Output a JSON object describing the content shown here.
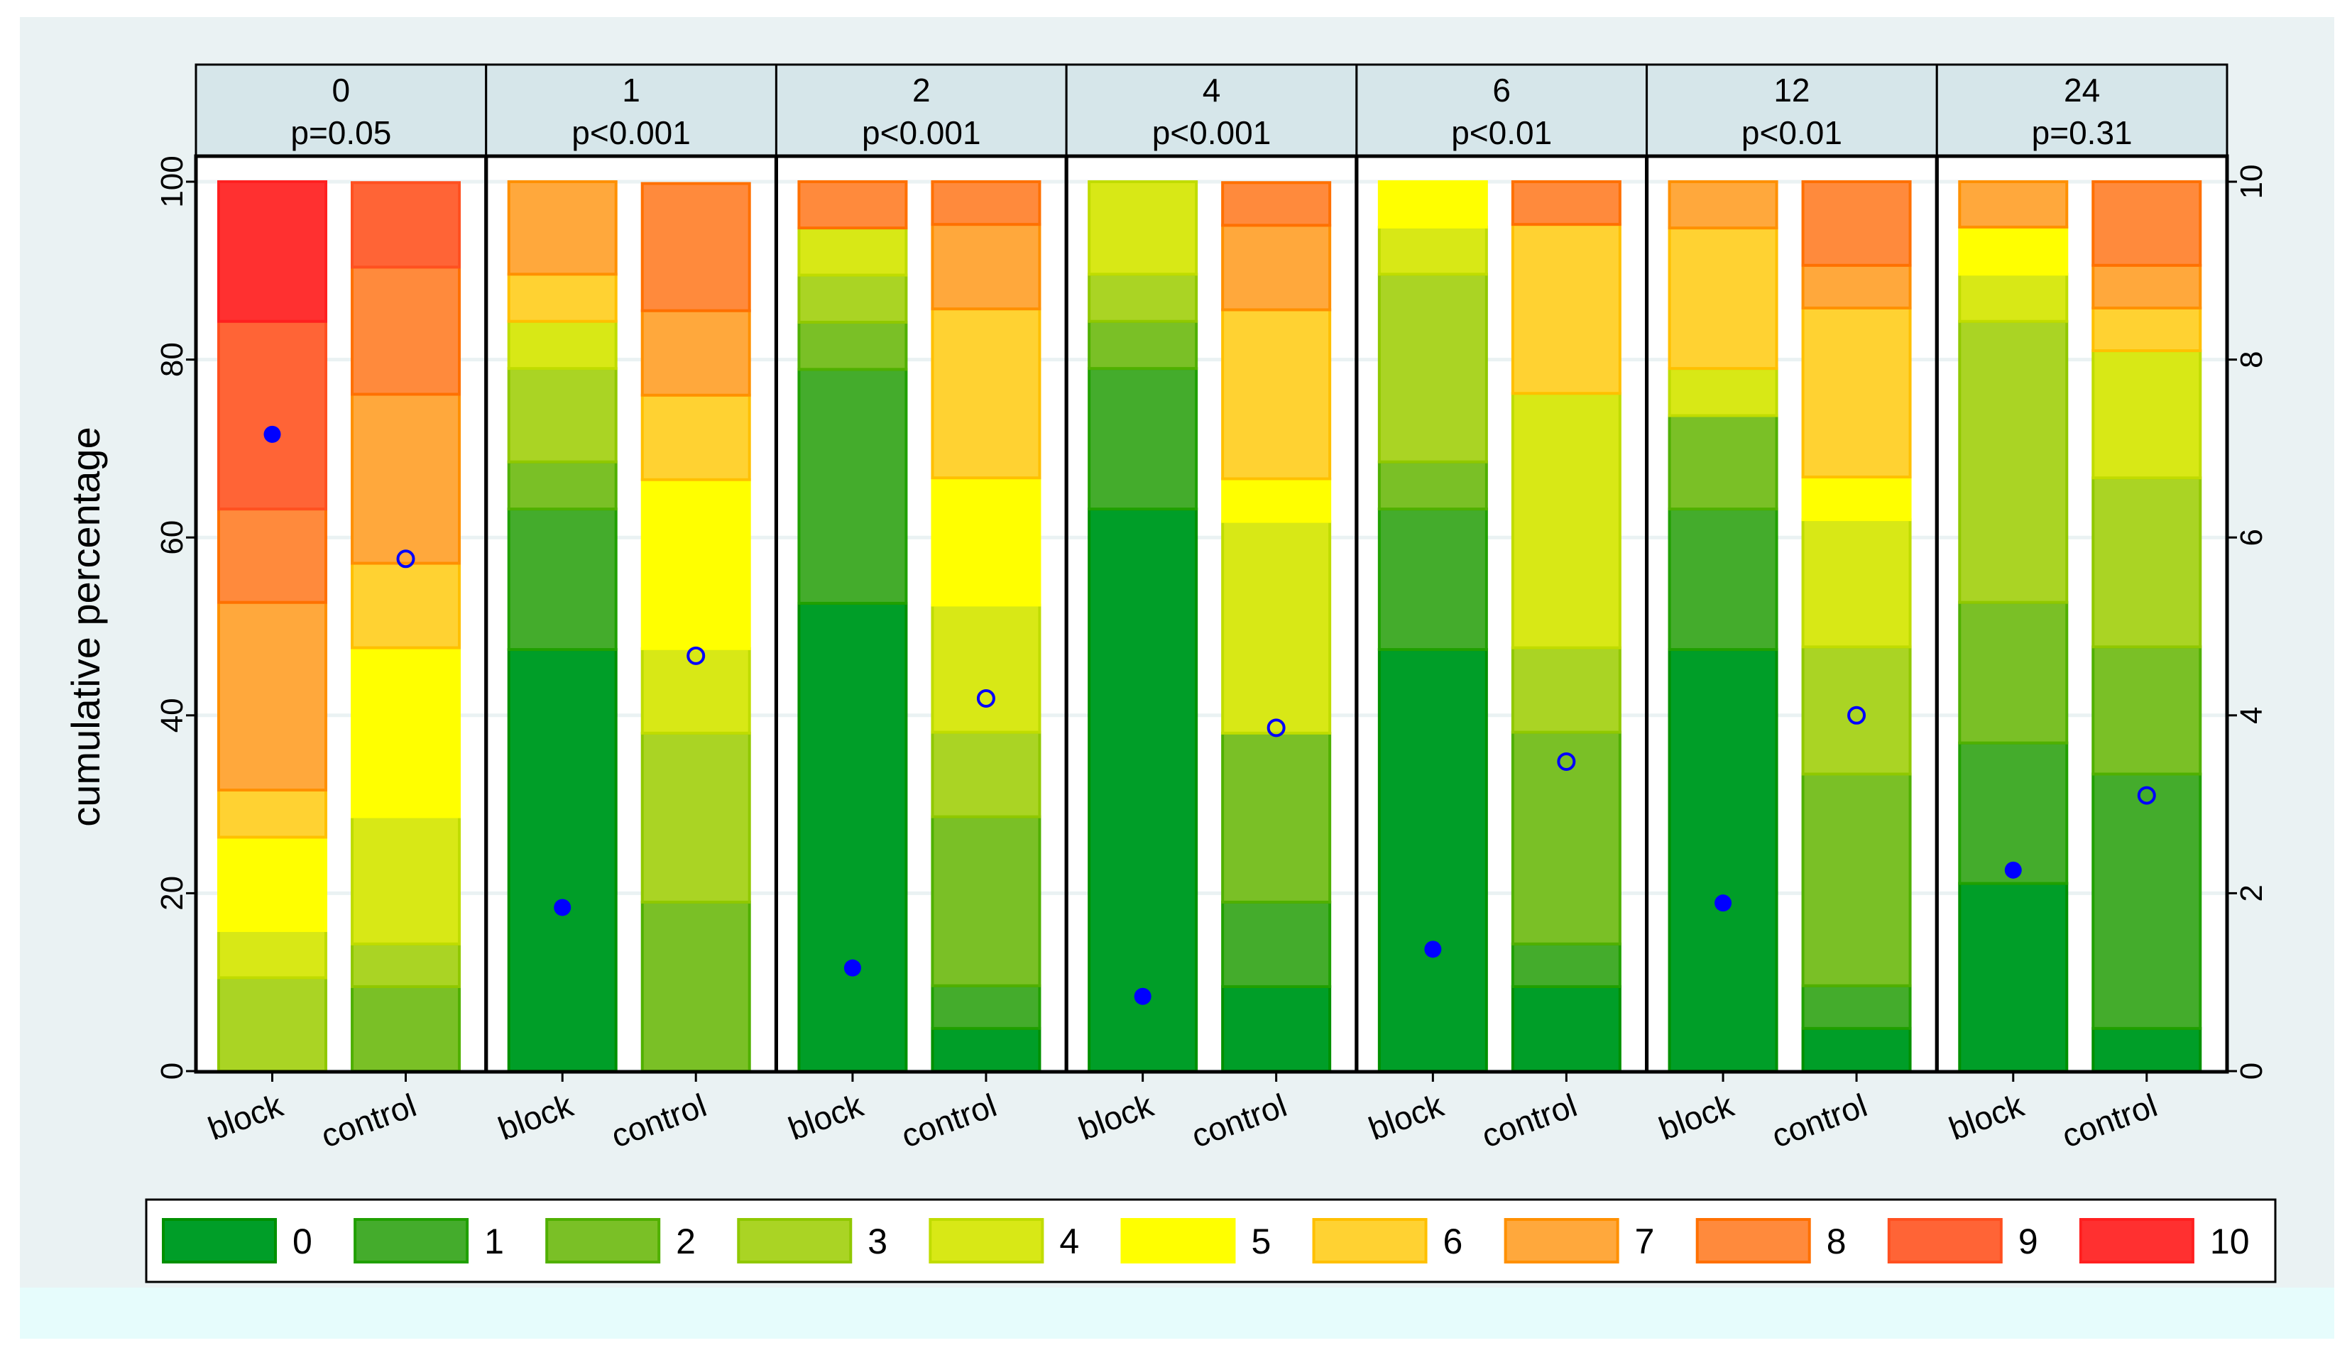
{
  "chart_data": {
    "type": "bar",
    "stacked": true,
    "ylabel": "cumulative percentage",
    "ylim": [
      0,
      100
    ],
    "yticks": [
      0,
      20,
      40,
      60,
      80,
      100
    ],
    "y2lim": [
      0,
      10
    ],
    "y2ticks": [
      0,
      2,
      4,
      6,
      8,
      10
    ],
    "categories": [
      "block",
      "control"
    ],
    "legend": {
      "placement": "bottom",
      "labels": [
        "0",
        "1",
        "2",
        "3",
        "4",
        "5",
        "6",
        "7",
        "8",
        "9",
        "10"
      ],
      "colors": [
        "#009e28",
        "#44ac2c",
        "#7ac026",
        "#aad424",
        "#d8e816",
        "#ffff00",
        "#ffd232",
        "#ffa83c",
        "#ff8a3c",
        "#ff6436",
        "#ff3030"
      ],
      "borders": [
        "#009000",
        "#20a000",
        "#50b000",
        "#90c800",
        "#c0dc00",
        "#ffff00",
        "#ffc000",
        "#ff9000",
        "#ff7000",
        "#ff5020",
        "#ff2020"
      ]
    },
    "mean_marker_color": "#0000ff",
    "panels": [
      {
        "time": "0",
        "p": "p=0.05",
        "block": {
          "percent": [
            0,
            0,
            0,
            10.5,
            5.3,
            10.5,
            5.3,
            21.1,
            10.5,
            21.1,
            15.8
          ],
          "mean": 7.16
        },
        "control": {
          "percent": [
            0,
            0,
            9.5,
            4.8,
            14.3,
            19.0,
            9.5,
            19.0,
            14.3,
            9.5,
            0
          ],
          "mean": 5.76
        }
      },
      {
        "time": "1",
        "p": "p<0.001",
        "block": {
          "percent": [
            47.4,
            15.8,
            5.3,
            10.5,
            5.3,
            0,
            5.3,
            10.5,
            0,
            0,
            0
          ],
          "mean": 1.84
        },
        "control": {
          "percent": [
            0,
            0,
            19.0,
            19.0,
            9.5,
            19.0,
            9.5,
            9.5,
            14.3,
            0,
            0
          ],
          "mean": 4.67
        }
      },
      {
        "time": "2",
        "p": "p<0.001",
        "block": {
          "percent": [
            52.6,
            26.3,
            5.3,
            5.3,
            5.3,
            0,
            0,
            0,
            5.3,
            0,
            0
          ],
          "mean": 1.16
        },
        "control": {
          "percent": [
            4.8,
            4.8,
            19.0,
            9.5,
            14.3,
            14.3,
            19.0,
            9.5,
            4.8,
            0,
            0
          ],
          "mean": 4.19
        }
      },
      {
        "time": "4",
        "p": "p<0.001",
        "block": {
          "percent": [
            63.2,
            15.8,
            5.3,
            5.3,
            10.5,
            0,
            0,
            0,
            0,
            0,
            0
          ],
          "mean": 0.84
        },
        "control": {
          "percent": [
            9.5,
            9.5,
            19.0,
            0,
            23.8,
            4.8,
            19.0,
            9.5,
            4.8,
            0,
            0
          ],
          "mean": 3.86
        }
      },
      {
        "time": "6",
        "p": "p<0.01",
        "block": {
          "percent": [
            47.4,
            15.8,
            5.3,
            21.1,
            5.3,
            5.3,
            0,
            0,
            0,
            0,
            0
          ],
          "mean": 1.37
        },
        "control": {
          "percent": [
            9.5,
            4.8,
            23.8,
            9.5,
            28.6,
            0,
            19.0,
            0,
            4.8,
            0,
            0
          ],
          "mean": 3.48
        }
      },
      {
        "time": "12",
        "p": "p<0.01",
        "block": {
          "percent": [
            47.4,
            15.8,
            10.5,
            0,
            5.3,
            0,
            15.8,
            5.3,
            0,
            0,
            0
          ],
          "mean": 1.89
        },
        "control": {
          "percent": [
            4.8,
            4.8,
            23.8,
            14.3,
            14.3,
            4.8,
            19.0,
            4.8,
            9.5,
            0,
            0
          ],
          "mean": 4.0
        }
      },
      {
        "time": "24",
        "p": "p=0.31",
        "block": {
          "percent": [
            21.1,
            15.8,
            15.8,
            31.6,
            5.3,
            5.3,
            0,
            5.3,
            0,
            0,
            0
          ],
          "mean": 2.26
        },
        "control": {
          "percent": [
            4.8,
            28.6,
            14.3,
            19.0,
            14.3,
            0,
            4.8,
            4.8,
            9.5,
            0,
            0
          ],
          "mean": 3.1
        }
      }
    ]
  }
}
